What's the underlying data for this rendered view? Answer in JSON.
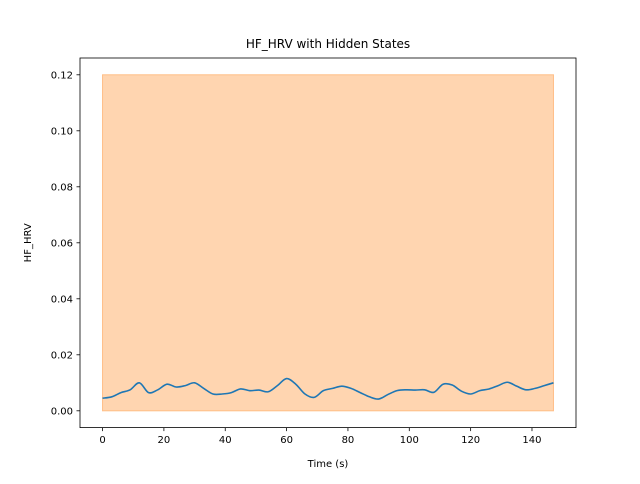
{
  "chart_data": {
    "type": "line",
    "title": "HF_HRV with Hidden States",
    "xlabel": "Time (s)",
    "ylabel": "HF_HRV",
    "xlim": [
      -7.35,
      154.35
    ],
    "ylim": [
      -0.006,
      0.126
    ],
    "x_ticks": [
      0,
      20,
      40,
      60,
      80,
      100,
      120,
      140
    ],
    "x_tick_labels": [
      "0",
      "20",
      "40",
      "60",
      "80",
      "100",
      "120",
      "140"
    ],
    "y_ticks": [
      0.0,
      0.02,
      0.04,
      0.06,
      0.08,
      0.1,
      0.12
    ],
    "y_tick_labels": [
      "0.00",
      "0.02",
      "0.04",
      "0.06",
      "0.08",
      "0.10",
      "0.12"
    ],
    "grid": false,
    "state_spans": [
      {
        "x_start": 0,
        "x_end": 147,
        "y_bottom": 0.0,
        "y_top": 0.12,
        "color": "#ffbe86",
        "alpha": 0.65
      }
    ],
    "series": [
      {
        "color": "#1f77b4",
        "x": [
          0,
          3,
          6,
          9,
          12,
          15,
          18,
          21,
          24,
          27,
          30,
          33,
          36,
          39,
          42,
          45,
          48,
          51,
          54,
          57,
          60,
          63,
          66,
          69,
          72,
          75,
          78,
          81,
          84,
          87,
          90,
          93,
          96,
          99,
          102,
          105,
          108,
          111,
          114,
          117,
          120,
          123,
          126,
          129,
          132,
          135,
          138,
          141,
          144,
          147
        ],
        "y": [
          0.0045,
          0.005,
          0.0065,
          0.0075,
          0.01,
          0.0065,
          0.0075,
          0.0095,
          0.0085,
          0.009,
          0.01,
          0.008,
          0.006,
          0.006,
          0.0065,
          0.0078,
          0.0072,
          0.0074,
          0.0068,
          0.009,
          0.0115,
          0.0095,
          0.006,
          0.0048,
          0.0072,
          0.008,
          0.0088,
          0.008,
          0.0065,
          0.005,
          0.0042,
          0.0058,
          0.0072,
          0.0075,
          0.0074,
          0.0075,
          0.0066,
          0.0095,
          0.0092,
          0.007,
          0.006,
          0.0072,
          0.0078,
          0.009,
          0.0102,
          0.0088,
          0.0075,
          0.008,
          0.009,
          0.01
        ]
      }
    ]
  }
}
